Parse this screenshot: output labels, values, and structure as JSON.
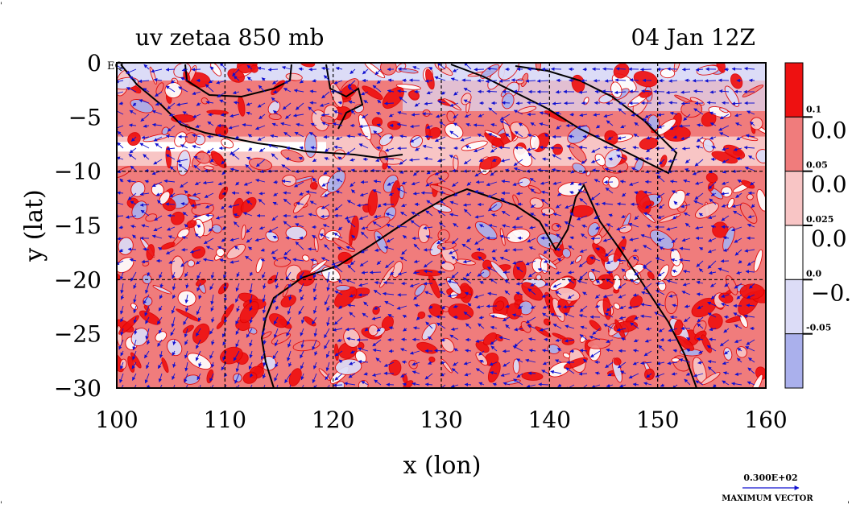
{
  "chart_data": {
    "type": "heatmap",
    "title_left": "uv zetaa 850 mb",
    "title_right": "04 Jan 12Z",
    "xlabel": "x (lon)",
    "ylabel": "y (lat)",
    "xlim": [
      100,
      160
    ],
    "ylim": [
      -30,
      0
    ],
    "x_ticks": [
      "100",
      "110",
      "120",
      "130",
      "140",
      "150",
      "160"
    ],
    "y_ticks": [
      "0",
      "−5",
      "−10",
      "−15",
      "−20",
      "−25",
      "−30"
    ],
    "eq_label": "EQ",
    "grid_lines": {
      "lon": [
        110,
        120,
        130,
        140,
        150
      ],
      "lat": [
        -10,
        -20
      ]
    },
    "colorbar": {
      "colors": [
        "#ee1111",
        "#f07c7c",
        "#f8c5c5",
        "#ffffff",
        "#dcdcf7",
        "#aab0ec"
      ],
      "boundary_labels": [
        "0.1",
        "0.05",
        "0.025",
        "0.0",
        "-0.05"
      ],
      "big_labels": [
        "0.0",
        "0.0",
        "0.0",
        "−0."
      ]
    },
    "colors": {
      "strong_positive": "#ee1111",
      "positive": "#f07c7c",
      "weak_positive": "#f8c5c5",
      "neutral": "#ffffff",
      "weak_negative": "#dcdcf7",
      "negative": "#aab0ec",
      "contour": "#dd0000",
      "vector": "#1010d0",
      "coast": "#000000"
    },
    "max_vector": {
      "value": "0.300E+02",
      "label": "MAXIMUM VECTOR"
    }
  }
}
